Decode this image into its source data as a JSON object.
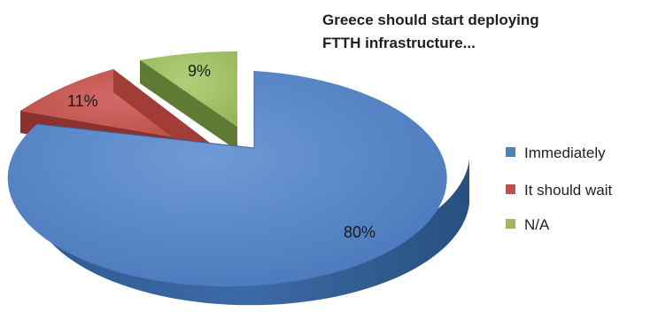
{
  "chart_data": {
    "type": "pie",
    "title_lines": [
      "Greece should start deploying",
      "FTTH infrastructure..."
    ],
    "categories": [
      "Immediately",
      "It should wait",
      "N/A"
    ],
    "values": [
      80,
      11,
      9
    ],
    "data_labels": [
      "80%",
      "11%",
      "9%"
    ],
    "colors": [
      "#4f81bd",
      "#c0504d",
      "#9bbb59"
    ],
    "legend_position": "right",
    "style": "3D pie, exploded small slices"
  }
}
